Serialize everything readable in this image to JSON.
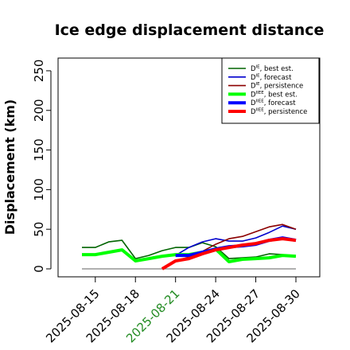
{
  "chart_data": {
    "type": "line",
    "title": "Ice edge displacement distance",
    "xlabel": "",
    "ylabel": "Displacement (km)",
    "x": [
      "2025-08-14",
      "2025-08-15",
      "2025-08-16",
      "2025-08-17",
      "2025-08-18",
      "2025-08-19",
      "2025-08-20",
      "2025-08-21",
      "2025-08-22",
      "2025-08-23",
      "2025-08-24",
      "2025-08-25",
      "2025-08-26",
      "2025-08-27",
      "2025-08-28",
      "2025-08-29",
      "2025-08-30"
    ],
    "xticks": [
      "2025-08-15",
      "2025-08-18",
      "2025-08-21",
      "2025-08-24",
      "2025-08-27",
      "2025-08-30"
    ],
    "highlighted_tick": "2025-08-21",
    "highlight_color": "#228B22",
    "ylim": [
      0,
      260
    ],
    "yticks": [
      0,
      50,
      100,
      150,
      200,
      250
    ],
    "grid": false,
    "legend_position": "top-right",
    "reference_line": {
      "value": 0,
      "color": "#808080"
    },
    "series": [
      {
        "name": "best est.",
        "sup": "IE",
        "color": "#006400",
        "width": 1.6,
        "values": [
          27,
          27,
          34,
          36,
          13,
          17,
          23,
          27,
          27,
          33,
          28,
          13,
          14,
          15,
          19,
          18,
          null
        ]
      },
      {
        "name": "forecast",
        "sup": "IE",
        "color": "#0000CD",
        "width": 1.6,
        "values": [
          null,
          null,
          null,
          null,
          null,
          null,
          null,
          17,
          27,
          34,
          38,
          35,
          35,
          39,
          46,
          54,
          50
        ]
      },
      {
        "name": "persistence",
        "sup": "IE",
        "color": "#8B0000",
        "width": 1.6,
        "values": [
          null,
          null,
          null,
          null,
          null,
          null,
          0,
          10,
          15,
          22,
          31,
          38,
          41,
          47,
          53,
          56,
          50
        ]
      },
      {
        "name": "best est.",
        "sup": "IIEE",
        "color": "#00FF00",
        "width": 4,
        "values": [
          18,
          18,
          21,
          24,
          10,
          13,
          16,
          18,
          18,
          21,
          25,
          9,
          12,
          13,
          14,
          17,
          16
        ]
      },
      {
        "name": "forecast",
        "sup": "IIEE",
        "color": "#0000FF",
        "width": 4,
        "values": [
          null,
          null,
          null,
          null,
          null,
          null,
          null,
          17,
          17,
          21,
          25,
          28,
          29,
          31,
          36,
          39,
          36
        ]
      },
      {
        "name": "persistence",
        "sup": "IIEE",
        "color": "#FF0000",
        "width": 4,
        "values": [
          null,
          null,
          null,
          null,
          null,
          null,
          0,
          10,
          13,
          19,
          24,
          27,
          30,
          32,
          36,
          38,
          36
        ]
      }
    ]
  }
}
